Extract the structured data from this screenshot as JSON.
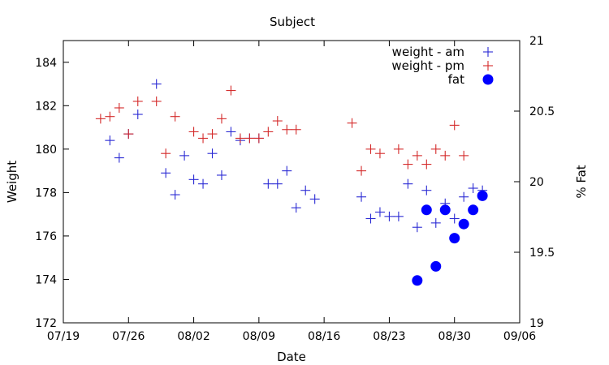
{
  "chart_data": {
    "type": "scatter",
    "title": "Subject",
    "xlabel": "Date",
    "ylabel": "Weight",
    "y2label": "% Fat",
    "x_ticks": [
      "07/19",
      "07/26",
      "08/02",
      "08/09",
      "08/16",
      "08/23",
      "08/30",
      "09/06"
    ],
    "x_range": [
      "07/19",
      "09/06"
    ],
    "ylim": [
      172,
      185
    ],
    "y_ticks": [
      172,
      174,
      176,
      178,
      180,
      182,
      184
    ],
    "y2lim": [
      19,
      21
    ],
    "y2_ticks": [
      19,
      19.5,
      20,
      20.5,
      21
    ],
    "grid": false,
    "legend_position": "top-right",
    "series": [
      {
        "name": "weight - am",
        "marker": "plus",
        "color": "#2a2ad4",
        "axis": "left",
        "points": [
          [
            "07/24",
            180.4
          ],
          [
            "07/25",
            179.6
          ],
          [
            "07/26",
            180.7
          ],
          [
            "07/27",
            181.6
          ],
          [
            "07/29",
            183.0
          ],
          [
            "07/30",
            178.9
          ],
          [
            "07/31",
            177.9
          ],
          [
            "08/01",
            179.7
          ],
          [
            "08/02",
            178.6
          ],
          [
            "08/03",
            178.4
          ],
          [
            "08/04",
            179.8
          ],
          [
            "08/05",
            178.8
          ],
          [
            "08/06",
            180.8
          ],
          [
            "08/07",
            180.4
          ],
          [
            "08/08",
            180.5
          ],
          [
            "08/09",
            180.5
          ],
          [
            "08/10",
            178.4
          ],
          [
            "08/11",
            178.4
          ],
          [
            "08/12",
            179.0
          ],
          [
            "08/13",
            177.3
          ],
          [
            "08/14",
            178.1
          ],
          [
            "08/15",
            177.7
          ],
          [
            "08/20",
            177.8
          ],
          [
            "08/21",
            176.8
          ],
          [
            "08/22",
            177.1
          ],
          [
            "08/23",
            176.9
          ],
          [
            "08/24",
            176.9
          ],
          [
            "08/25",
            178.4
          ],
          [
            "08/26",
            176.4
          ],
          [
            "08/27",
            178.1
          ],
          [
            "08/28",
            176.6
          ],
          [
            "08/29",
            177.5
          ],
          [
            "08/30",
            176.8
          ],
          [
            "08/31",
            177.8
          ],
          [
            "09/01",
            178.2
          ],
          [
            "09/02",
            178.1
          ]
        ]
      },
      {
        "name": "weight - pm",
        "marker": "plus",
        "color": "#d42a2a",
        "axis": "left",
        "points": [
          [
            "07/23",
            181.4
          ],
          [
            "07/24",
            181.5
          ],
          [
            "07/25",
            181.9
          ],
          [
            "07/26",
            180.7
          ],
          [
            "07/27",
            182.2
          ],
          [
            "07/29",
            182.2
          ],
          [
            "07/30",
            179.8
          ],
          [
            "07/31",
            181.5
          ],
          [
            "08/02",
            180.8
          ],
          [
            "08/03",
            180.5
          ],
          [
            "08/04",
            180.7
          ],
          [
            "08/05",
            181.4
          ],
          [
            "08/06",
            182.7
          ],
          [
            "08/07",
            180.5
          ],
          [
            "08/08",
            180.5
          ],
          [
            "08/09",
            180.5
          ],
          [
            "08/10",
            180.8
          ],
          [
            "08/11",
            181.3
          ],
          [
            "08/12",
            180.9
          ],
          [
            "08/13",
            180.9
          ],
          [
            "08/19",
            181.2
          ],
          [
            "08/20",
            179.0
          ],
          [
            "08/21",
            180.0
          ],
          [
            "08/22",
            179.8
          ],
          [
            "08/24",
            180.0
          ],
          [
            "08/25",
            179.3
          ],
          [
            "08/26",
            179.7
          ],
          [
            "08/27",
            179.3
          ],
          [
            "08/28",
            180.0
          ],
          [
            "08/29",
            179.7
          ],
          [
            "08/30",
            181.1
          ],
          [
            "08/31",
            179.7
          ]
        ]
      },
      {
        "name": "fat",
        "marker": "circle",
        "color": "#0000ff",
        "axis": "right",
        "points": [
          [
            "08/26",
            19.3
          ],
          [
            "08/27",
            19.8
          ],
          [
            "08/28",
            19.4
          ],
          [
            "08/29",
            19.8
          ],
          [
            "08/30",
            19.6
          ],
          [
            "08/31",
            19.7
          ],
          [
            "09/01",
            19.8
          ],
          [
            "09/02",
            19.9
          ]
        ]
      }
    ]
  }
}
